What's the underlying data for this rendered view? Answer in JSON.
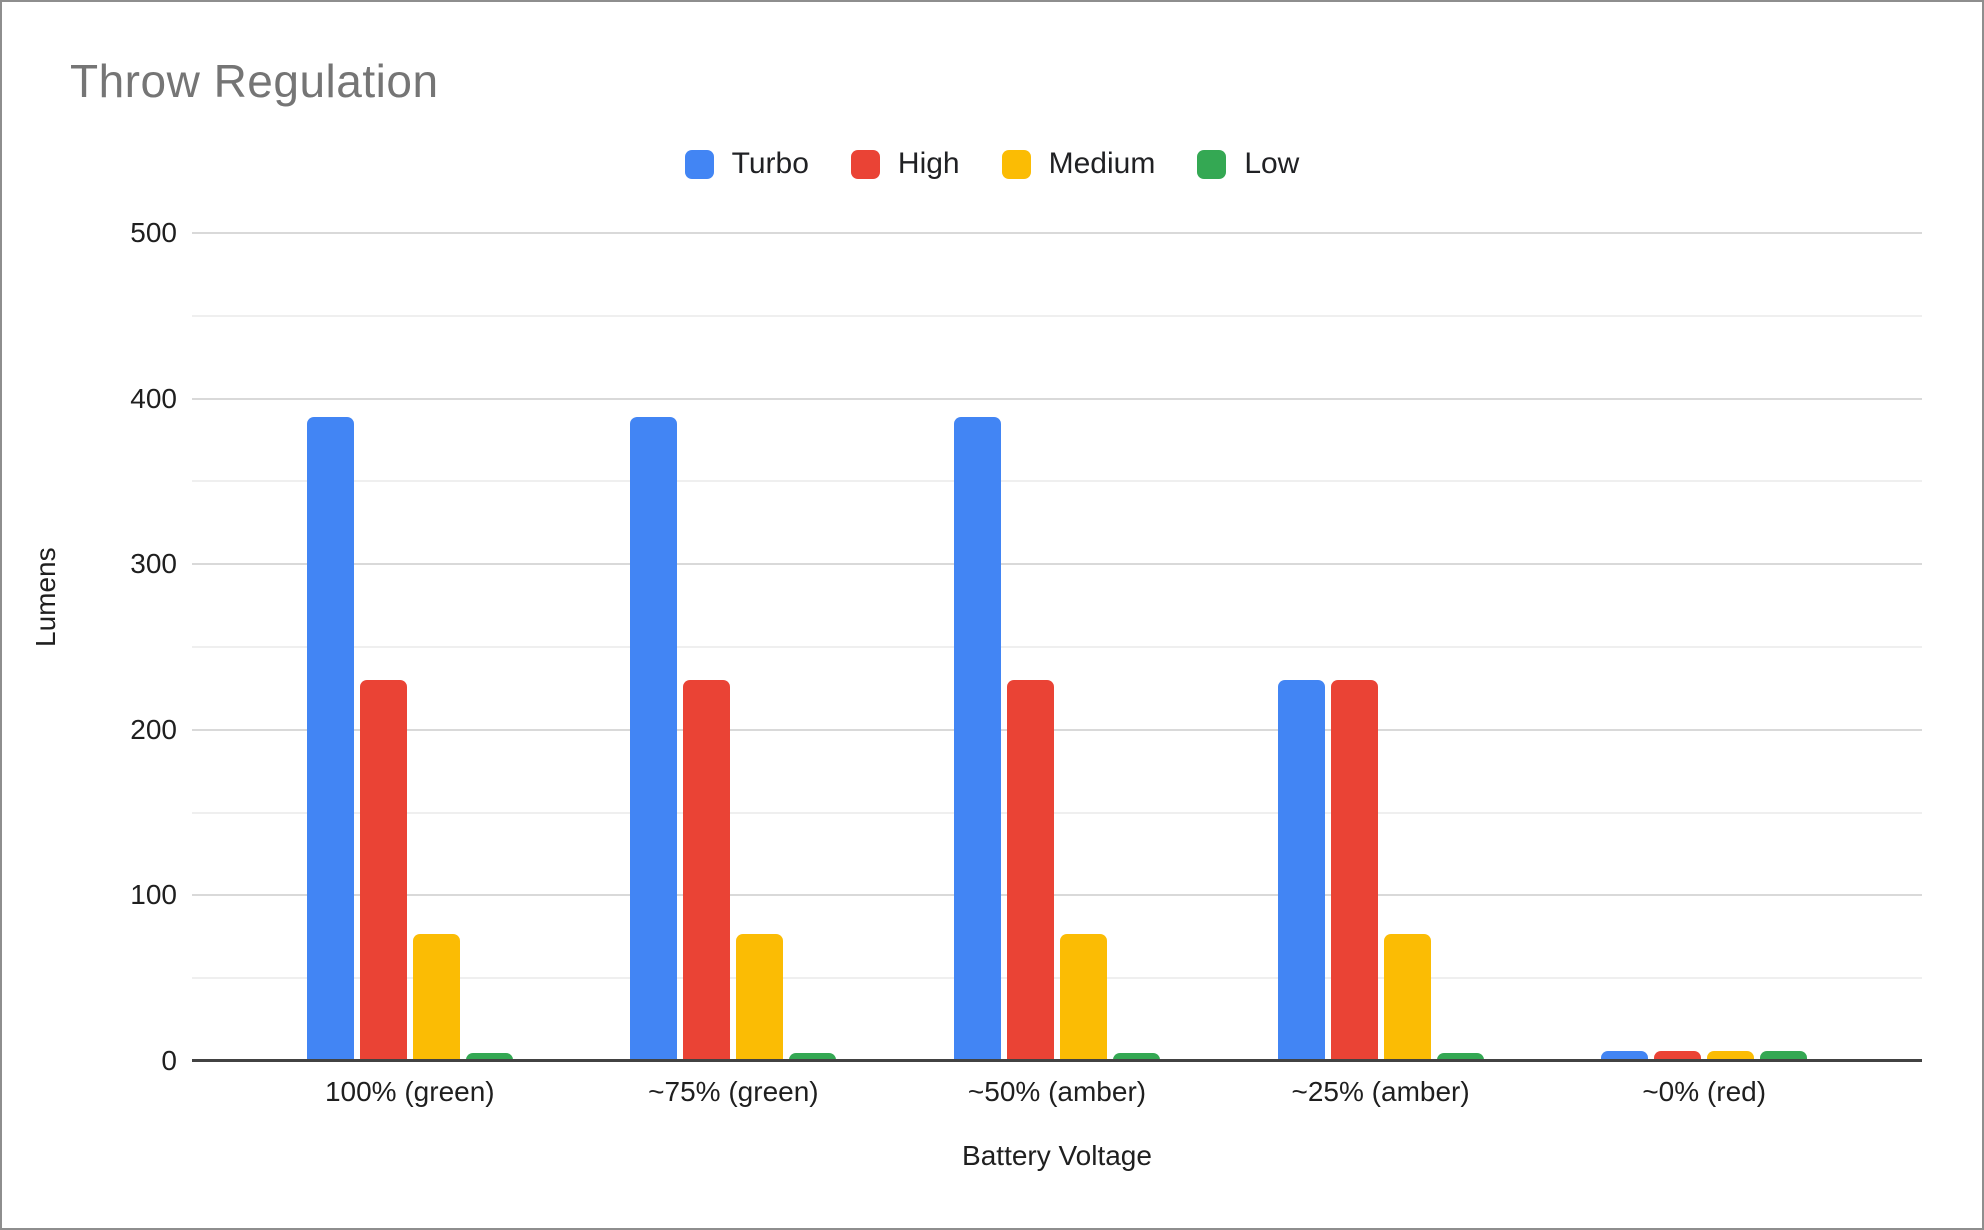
{
  "window": {
    "background": "#ffffff",
    "border_color": "#8e8e8e"
  },
  "chart_data": {
    "type": "bar",
    "title": "Throw Regulation",
    "xlabel": "Battery Voltage",
    "ylabel": "Lumens",
    "ylim": [
      0,
      500
    ],
    "ytick_values": [
      0,
      100,
      200,
      300,
      400,
      500
    ],
    "gridline_minor_step": 50,
    "grid": true,
    "legend_position": "top",
    "categories": [
      "100% (green)",
      "~75% (green)",
      "~50% (amber)",
      "~25% (amber)",
      "~0% (red)"
    ],
    "series": [
      {
        "name": "Turbo",
        "color": "#4285F4",
        "values": [
          389,
          389,
          389,
          230,
          6
        ]
      },
      {
        "name": "High",
        "color": "#EA4335",
        "values": [
          230,
          230,
          230,
          230,
          6
        ]
      },
      {
        "name": "Medium",
        "color": "#FBBC04",
        "values": [
          77,
          77,
          77,
          77,
          6
        ]
      },
      {
        "name": "Low",
        "color": "#34A853",
        "values": [
          5,
          5,
          5,
          5,
          6
        ]
      }
    ],
    "colors": {
      "title_text": "#757575",
      "label_text": "#1f1f1f",
      "legend_text": "#202124",
      "grid_major": "#d9d9d9",
      "grid_minor": "#efefef",
      "axis_line": "#424242"
    }
  }
}
